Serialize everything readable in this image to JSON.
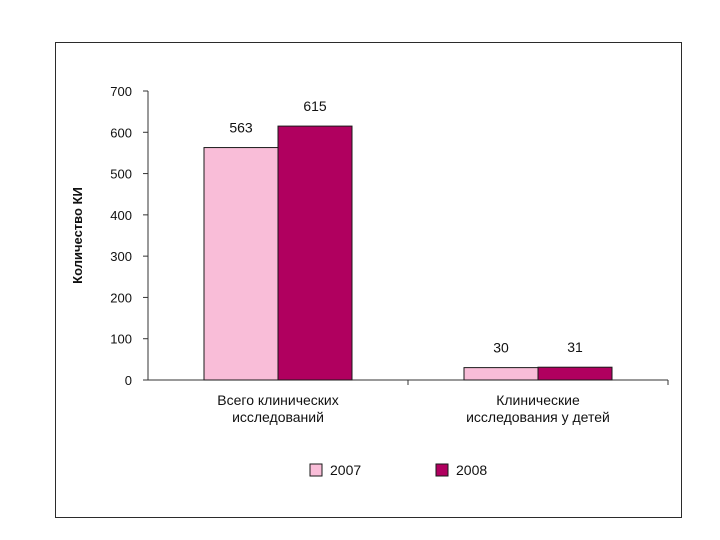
{
  "chart_data": {
    "type": "bar",
    "ylabel": "Количество КИ",
    "xlabel": "",
    "ylim": [
      0,
      700
    ],
    "yticks": [
      0,
      100,
      200,
      300,
      400,
      500,
      600,
      700
    ],
    "categories": [
      [
        "Всего клинических",
        "исследований"
      ],
      [
        "Клинические",
        "исследования у детей"
      ]
    ],
    "series": [
      {
        "name": "2007",
        "values": [
          563,
          30
        ],
        "color": "#f9bdd8"
      },
      {
        "name": "2008",
        "values": [
          615,
          31
        ],
        "color": "#b0005f"
      }
    ],
    "grid": false,
    "legend_position": "bottom"
  }
}
